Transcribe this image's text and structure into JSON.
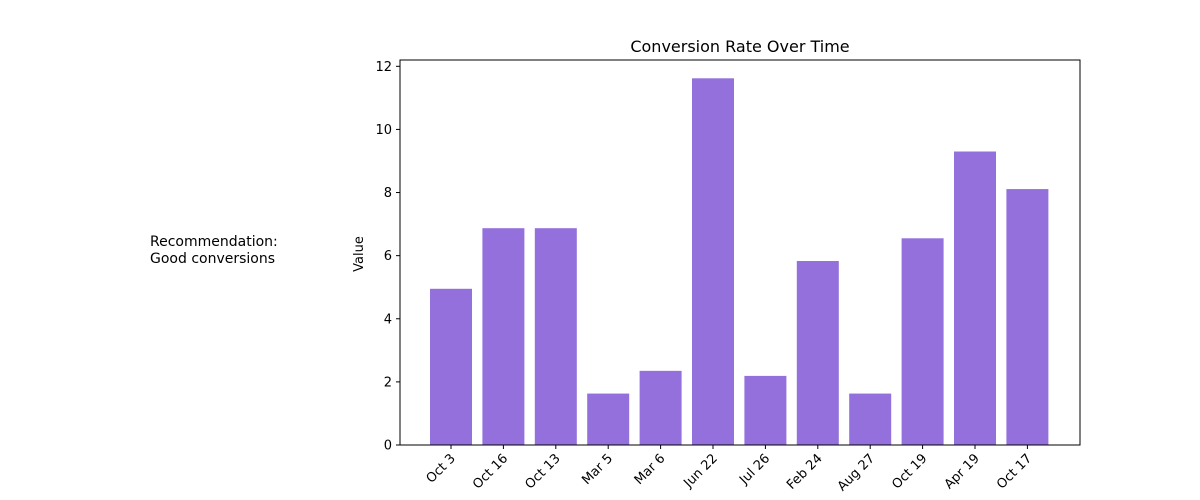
{
  "annotation": {
    "line1": "Recommendation:",
    "line2": "Good conversions"
  },
  "chart_data": {
    "type": "bar",
    "title": "Conversion Rate Over Time",
    "xlabel": "",
    "ylabel": "Value",
    "categories": [
      "Oct 3",
      "Oct 16",
      "Oct 13",
      "Mar 5",
      "Mar 6",
      "Jun 22",
      "Jul 26",
      "Feb 24",
      "Aug 27",
      "Oct 19",
      "Apr 19",
      "Oct 17"
    ],
    "values": [
      4.95,
      6.87,
      6.87,
      1.63,
      2.35,
      11.62,
      2.19,
      5.83,
      1.63,
      6.55,
      9.3,
      8.11
    ],
    "ylim": [
      0,
      12.2
    ],
    "yticks": [
      0,
      2,
      4,
      6,
      8,
      10,
      12
    ],
    "bar_color": "#9370DB",
    "grid": false,
    "legend": "none"
  }
}
